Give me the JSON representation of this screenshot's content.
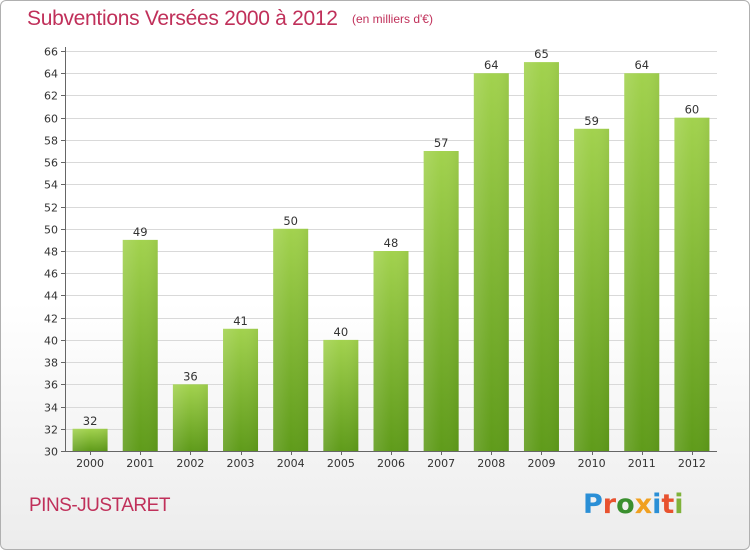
{
  "header": {
    "title": "Subventions Versées 2000 à 2012",
    "subtitle": "(en milliers d'€)"
  },
  "footer": {
    "commune": "PINS-JUSTARET",
    "logo_text": "Proxiti",
    "logo_colors": [
      "#2a8fd6",
      "#e8522f",
      "#3a8f2e",
      "#f0a020",
      "#2a8fd6",
      "#e8522f",
      "#7fb23a"
    ]
  },
  "colors": {
    "bar_top": "#a2d24e",
    "bar_bottom": "#5f9b1a",
    "grid": "#d9d9d9",
    "axis": "#666666",
    "title": "#c0305a"
  },
  "chart_data": {
    "type": "bar",
    "categories": [
      "2000",
      "2001",
      "2002",
      "2003",
      "2004",
      "2005",
      "2006",
      "2007",
      "2008",
      "2009",
      "2010",
      "2011",
      "2012"
    ],
    "values": [
      32,
      49,
      36,
      41,
      50,
      40,
      48,
      57,
      64,
      65,
      59,
      64,
      60
    ],
    "ylim": [
      30,
      66
    ],
    "ytick_step": 2,
    "title": "Subventions Versées 2000 à 2012",
    "subtitle": "(en milliers d'€)",
    "xlabel": "",
    "ylabel": "",
    "grid": true
  }
}
